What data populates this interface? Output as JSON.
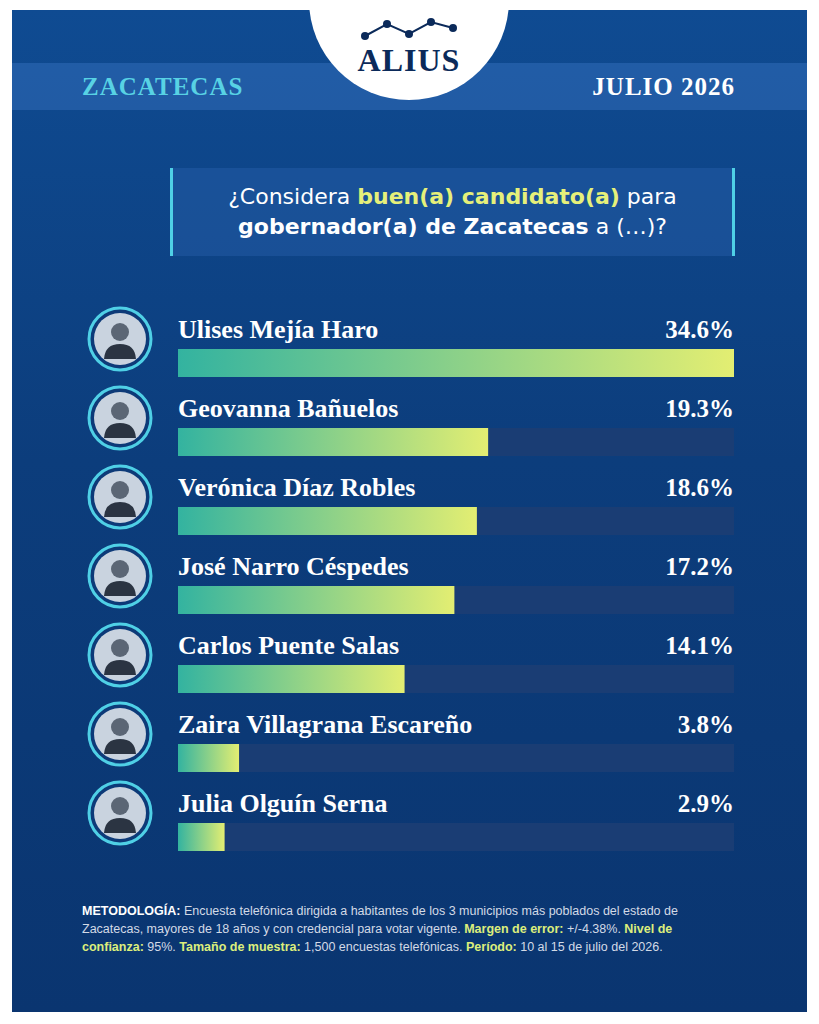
{
  "header": {
    "logo": "ALIUS",
    "region": "ZACATECAS",
    "date": "JULIO 2026"
  },
  "chart_data": {
    "type": "bar",
    "orientation": "horizontal",
    "title": "¿Considera buen(a) candidato(a) para gobernador(a) de Zacatecas a (…)?",
    "title_highlight": "buen(a) candidato(a)",
    "title_bold": "gobernador(a) de Zacatecas",
    "categories": [
      "Ulises Mejía Haro",
      "Geovanna Bañuelos",
      "Verónica Díaz Robles",
      "José Narro Céspedes",
      "Carlos Puente Salas",
      "Zaira Villagrana Escareño",
      "Julia Olguín Serna"
    ],
    "values": [
      34.6,
      19.3,
      18.6,
      17.2,
      14.1,
      3.8,
      2.9
    ],
    "value_labels": [
      "34.6%",
      "19.3%",
      "18.6%",
      "17.2%",
      "14.1%",
      "3.8%",
      "2.9%"
    ],
    "color": "#e3ee72",
    "xlim": [
      0,
      34.6
    ],
    "xticks": [],
    "data_labels": true,
    "tick_labels": false,
    "grid": false
  },
  "methodology": [
    {
      "label": "METODOLOGÍA:",
      "text": "Encuesta telefónica dirigida a habitantes de los 3 municipios más poblados del estado de Zacatecas, mayores de 18 años y con credencial para votar vigente."
    },
    {
      "label": "Margen de error:",
      "text": "+/-4.38%."
    },
    {
      "label": "Nivel de confianza:",
      "text": "95%."
    },
    {
      "label": "Tamaño de muestra:",
      "text": "1,500 encuestas telefónicas."
    },
    {
      "label": "Período:",
      "text": "10 al 15 de julio del 2026."
    }
  ]
}
